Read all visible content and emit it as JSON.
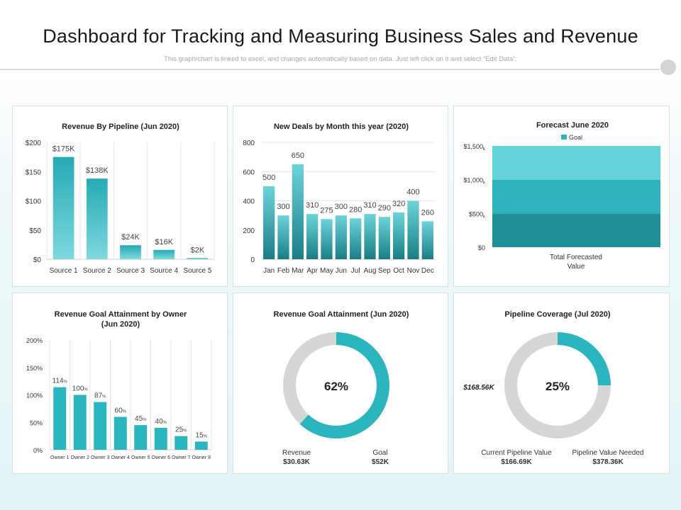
{
  "header": {
    "title": "Dashboard for Tracking and Measuring Business Sales and Revenue",
    "subtitle": "This graph/chart is linked to excel, and changes automatically based on data. Just left click on it and select “Edit Data”."
  },
  "colors": {
    "teal": "#2bb5bf",
    "teal_light": "#65d3da",
    "teal_mid": "#2db3bd",
    "teal_dark": "#1f8f98",
    "ring_grey": "#d6d6d6"
  },
  "chart_data": [
    {
      "id": "pipeline",
      "type": "bar",
      "title": "Revenue By Pipeline (Jun 2020)",
      "categories": [
        "Source 1",
        "Source 2",
        "Source 3",
        "Source 4",
        "Source 5"
      ],
      "values": [
        175,
        138,
        24,
        16,
        2
      ],
      "data_labels": [
        "$175K",
        "$138K",
        "$24K",
        "$16K",
        "$2K"
      ],
      "yticks": [
        0,
        50,
        100,
        150,
        200
      ],
      "ytick_labels": [
        "$0",
        "$50",
        "$100",
        "$150",
        "$200"
      ],
      "ylim": [
        0,
        200
      ]
    },
    {
      "id": "deals",
      "type": "bar",
      "title": "New Deals by Month this year (2020)",
      "categories": [
        "Jan",
        "Feb",
        "Mar",
        "Apr",
        "May",
        "Jun",
        "Jul",
        "Aug",
        "Sep",
        "Oct",
        "Nov",
        "Dec"
      ],
      "values": [
        500,
        300,
        650,
        310,
        275,
        300,
        280,
        310,
        290,
        320,
        400,
        260
      ],
      "data_labels": [
        "500",
        "300",
        "650",
        "310",
        "275",
        "300",
        "280",
        "310",
        "290",
        "320",
        "400",
        "260"
      ],
      "yticks": [
        0,
        200,
        400,
        600,
        800
      ],
      "ytick_labels": [
        "0",
        "200",
        "400",
        "600",
        "800"
      ],
      "ylim": [
        0,
        800
      ]
    },
    {
      "id": "forecast",
      "type": "bar",
      "title": "Forecast June 2020",
      "legend": "Goal",
      "category": "Total Forecasted Value",
      "category_lines": [
        "Total Forecasted",
        "Value"
      ],
      "segments": [
        {
          "from": 0,
          "to": 500
        },
        {
          "from": 500,
          "to": 1000
        },
        {
          "from": 1000,
          "to": 1500
        }
      ],
      "yticks": [
        0,
        500,
        1000,
        1500
      ],
      "ytick_labels": [
        "$0",
        "$500",
        "$1,000",
        "$1,500"
      ],
      "ytick_suffix": "k",
      "ylim": [
        0,
        1500
      ]
    },
    {
      "id": "owners",
      "type": "bar",
      "title": "Revenue Goal Attainment by Owner",
      "title_line2": "(Jun 2020)",
      "categories": [
        "Owner 1",
        "Owner 2",
        "Owner 3",
        "Owner 4",
        "Owner 5",
        "Owner 6",
        "Owner 7",
        "Owner 8"
      ],
      "values": [
        114,
        100,
        87,
        60,
        45,
        40,
        25,
        15
      ],
      "data_labels": [
        "114",
        "100",
        "87",
        "60",
        "45",
        "40",
        "25",
        "15"
      ],
      "label_suffix": "%",
      "yticks": [
        0,
        50,
        100,
        150,
        200
      ],
      "ytick_labels": [
        "0%",
        "50%",
        "100%",
        "150%",
        "200%"
      ],
      "ylim": [
        0,
        200
      ]
    },
    {
      "id": "attainment",
      "type": "pie",
      "title": "Revenue Goal Attainment (Jun 2020)",
      "percent": 62,
      "center_label": "62%",
      "labels": [
        {
          "name": "Revenue",
          "value": "$30.63K"
        },
        {
          "name": "Goal",
          "value": "$52K"
        }
      ]
    },
    {
      "id": "coverage",
      "type": "pie",
      "title": "Pipeline Coverage (Jul 2020)",
      "percent": 25,
      "center_label": "25%",
      "side_label": "$168.56K",
      "labels": [
        {
          "name": "Current Pipeline Value",
          "value": "$166.69K"
        },
        {
          "name": "Pipeline Value Needed",
          "value": "$378.36K"
        }
      ]
    }
  ]
}
